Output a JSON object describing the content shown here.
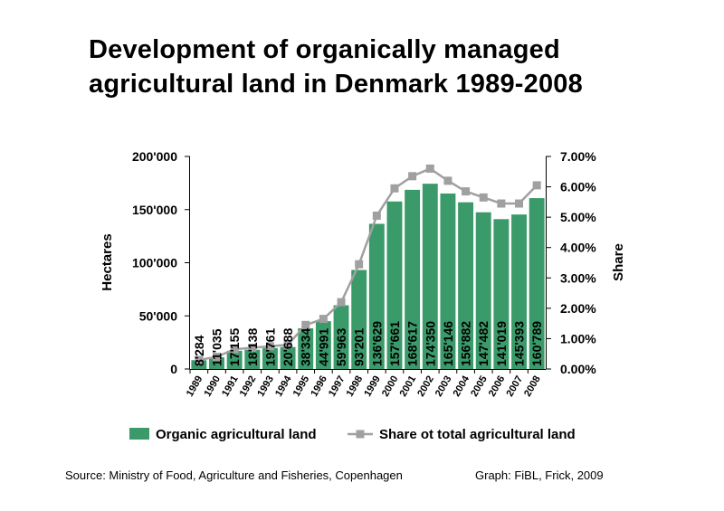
{
  "title_lines": [
    "Development of organically managed",
    "agricultural land  in Denmark 1989-2008"
  ],
  "chart_data": {
    "type": "bar",
    "categories": [
      "1989",
      "1990",
      "1991",
      "1992",
      "1993",
      "1994",
      "1995",
      "1996",
      "1997",
      "1998",
      "1999",
      "2000",
      "2001",
      "2002",
      "2003",
      "2004",
      "2005",
      "2006",
      "2007",
      "2008"
    ],
    "series": [
      {
        "name": "Organic agricultural land",
        "type": "bar",
        "axis": "left",
        "color": "#3a9a6a",
        "values": [
          8284,
          11035,
          17155,
          18138,
          19761,
          20688,
          38334,
          44991,
          59963,
          93201,
          136629,
          157661,
          168617,
          174350,
          165146,
          156882,
          147482,
          141019,
          145393,
          160789
        ],
        "labels": [
          "8'284",
          "11'035",
          "17'155",
          "18'138",
          "19'761",
          "20'688",
          "38'334",
          "44'991",
          "59'963",
          "93'201",
          "136'629",
          "157'661",
          "168'617",
          "174'350",
          "165'146",
          "156'882",
          "147'482",
          "141'019",
          "145'393",
          "160'789"
        ]
      },
      {
        "name": "Share ot total agricultural land",
        "type": "line",
        "axis": "right",
        "color": "#a0a0a0",
        "values": [
          0.3,
          0.4,
          0.65,
          0.7,
          0.75,
          0.8,
          1.45,
          1.65,
          2.2,
          3.45,
          5.05,
          5.95,
          6.35,
          6.6,
          6.2,
          5.85,
          5.65,
          5.45,
          5.45,
          6.05
        ]
      }
    ],
    "ylabel": "Hectares",
    "y2label": "Share",
    "ylim": [
      0,
      200000
    ],
    "y2lim": [
      0,
      7
    ],
    "yticks": [
      0,
      50000,
      100000,
      150000,
      200000
    ],
    "ytick_labels": [
      "0",
      "50'000",
      "100'000",
      "150'000",
      "200'000"
    ],
    "y2ticks": [
      0,
      1,
      2,
      3,
      4,
      5,
      6,
      7
    ],
    "y2tick_labels": [
      "0.00%",
      "1.00%",
      "2.00%",
      "3.00%",
      "4.00%",
      "5.00%",
      "6.00%",
      "7.00%"
    ],
    "legend_position": "bottom",
    "grid": false
  },
  "footer": {
    "source": "Source: Ministry of Food, Agriculture and Fisheries, Copenhagen",
    "credit": "Graph: FiBL, Frick, 2009"
  }
}
